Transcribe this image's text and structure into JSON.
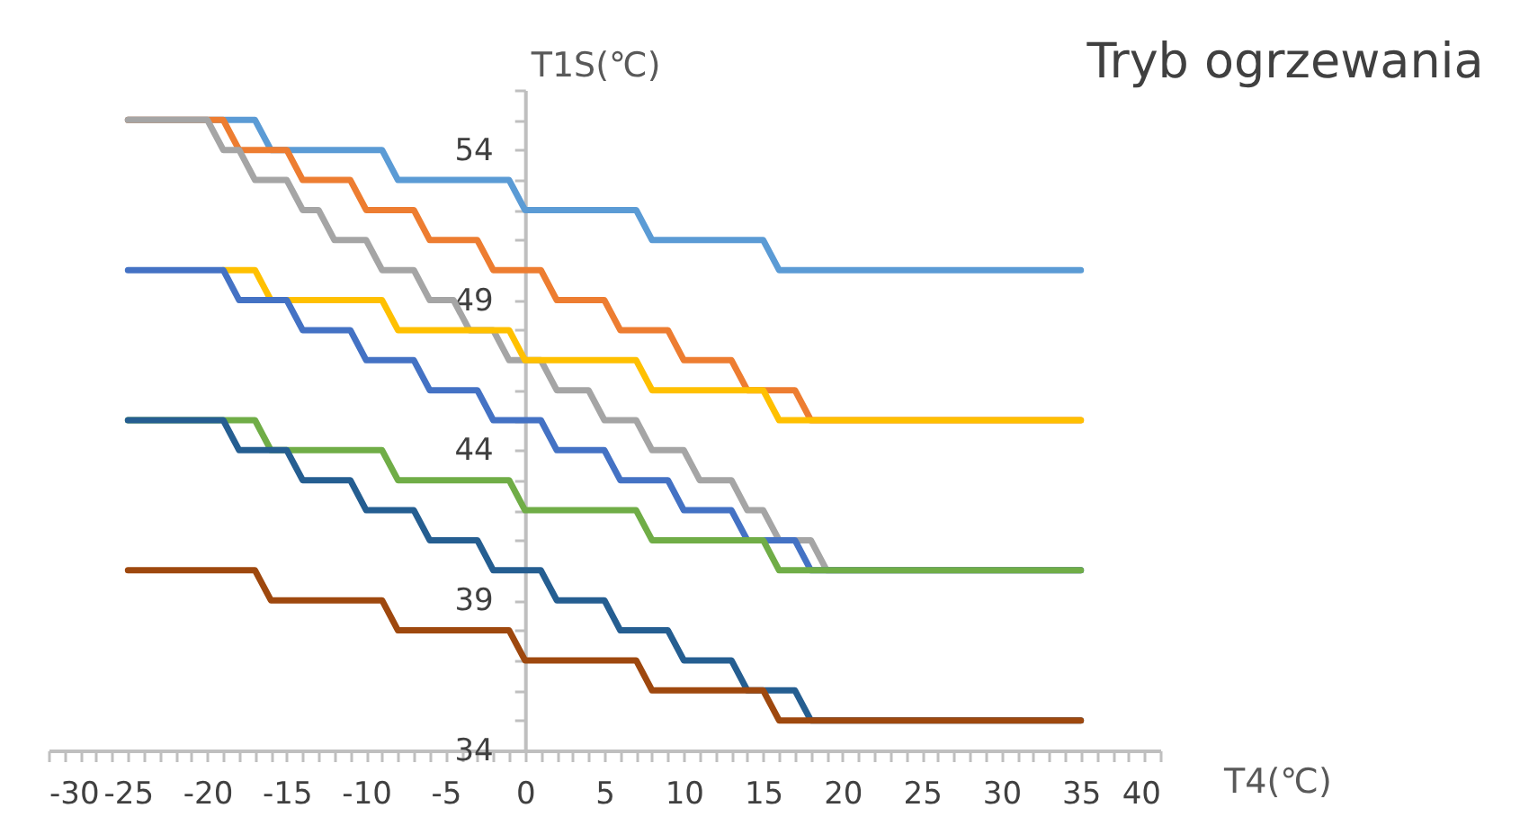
{
  "chart_data": {
    "type": "line",
    "title": "Tryb ogrzewania",
    "xlabel": "T4(℃)",
    "ylabel": "T1S(℃)",
    "xlim": [
      -30,
      40
    ],
    "ylim": [
      34,
      56
    ],
    "xticks": [
      -30,
      {
        "value": -29,
        "label": null
      },
      {
        "value": -28,
        "label": null
      },
      {
        "value": -27,
        "label": null
      },
      {
        "value": -26,
        "label": null
      },
      -25,
      {
        "value": -24,
        "label": null
      },
      {
        "value": -23,
        "label": null
      },
      {
        "value": -22,
        "label": null
      },
      {
        "value": -21,
        "label": null
      },
      -20,
      {
        "value": -19,
        "label": null
      },
      {
        "value": -18,
        "label": null
      },
      {
        "value": -17,
        "label": null
      },
      {
        "value": -16,
        "label": null
      },
      -15,
      {
        "value": -14,
        "label": null
      },
      {
        "value": -13,
        "label": null
      },
      {
        "value": -12,
        "label": null
      },
      {
        "value": -11,
        "label": null
      },
      -10,
      {
        "value": -9,
        "label": null
      },
      {
        "value": -8,
        "label": null
      },
      {
        "value": -7,
        "label": null
      },
      {
        "value": -6,
        "label": null
      },
      -5,
      {
        "value": -4,
        "label": null
      },
      {
        "value": -3,
        "label": null
      },
      {
        "value": -2,
        "label": null
      },
      {
        "value": -1,
        "label": null
      },
      0,
      {
        "value": 1,
        "label": null
      },
      {
        "value": 2,
        "label": null
      },
      {
        "value": 3,
        "label": null
      },
      {
        "value": 4,
        "label": null
      },
      5,
      {
        "value": 6,
        "label": null
      },
      {
        "value": 7,
        "label": null
      },
      {
        "value": 8,
        "label": null
      },
      {
        "value": 9,
        "label": null
      },
      10,
      {
        "value": 11,
        "label": null
      },
      {
        "value": 12,
        "label": null
      },
      {
        "value": 13,
        "label": null
      },
      {
        "value": 14,
        "label": null
      },
      15,
      {
        "value": 16,
        "label": null
      },
      {
        "value": 17,
        "label": null
      },
      {
        "value": 18,
        "label": null
      },
      {
        "value": 19,
        "label": null
      },
      20,
      {
        "value": 21,
        "label": null
      },
      {
        "value": 22,
        "label": null
      },
      {
        "value": 23,
        "label": null
      },
      {
        "value": 24,
        "label": null
      },
      25,
      {
        "value": 26,
        "label": null
      },
      {
        "value": 27,
        "label": null
      },
      {
        "value": 28,
        "label": null
      },
      {
        "value": 29,
        "label": null
      },
      30,
      {
        "value": 31,
        "label": null
      },
      {
        "value": 32,
        "label": null
      },
      {
        "value": 33,
        "label": null
      },
      {
        "value": 34,
        "label": null
      },
      35,
      {
        "value": 36,
        "label": null
      },
      {
        "value": 37,
        "label": null
      },
      {
        "value": 38,
        "label": null
      },
      {
        "value": 39,
        "label": null
      },
      40
    ],
    "yticks": [
      34,
      {
        "value": 35,
        "label": null
      },
      {
        "value": 36,
        "label": null
      },
      {
        "value": 37,
        "label": null
      },
      {
        "value": 38,
        "label": null
      },
      39,
      {
        "value": 40,
        "label": null
      },
      {
        "value": 41,
        "label": null
      },
      {
        "value": 42,
        "label": null
      },
      {
        "value": 43,
        "label": null
      },
      44,
      {
        "value": 45,
        "label": null
      },
      {
        "value": 46,
        "label": null
      },
      {
        "value": 47,
        "label": null
      },
      {
        "value": 48,
        "label": null
      },
      49,
      {
        "value": 50,
        "label": null
      },
      {
        "value": 51,
        "label": null
      },
      {
        "value": 52,
        "label": null
      },
      {
        "value": 53,
        "label": null
      },
      54,
      {
        "value": 55,
        "label": null
      },
      {
        "value": 56,
        "label": null
      }
    ],
    "grid": false,
    "legend": false,
    "marker": "none",
    "line_style": "solid",
    "series": [
      {
        "color": "#5b9bd5",
        "x": [
          -25,
          -17,
          -16,
          -9,
          -8,
          -1,
          0,
          7,
          8,
          15,
          16,
          35
        ],
        "values": [
          55,
          55,
          54,
          54,
          53,
          53,
          52,
          52,
          51,
          51,
          50,
          50
        ]
      },
      {
        "color": "#ed7d31",
        "x": [
          -25,
          -19,
          -18,
          -15,
          -14,
          -11,
          -10,
          -7,
          -6,
          -3,
          -2,
          1,
          2,
          5,
          6,
          9,
          10,
          13,
          14,
          17,
          18,
          35
        ],
        "values": [
          55,
          55,
          54,
          54,
          53,
          53,
          52,
          52,
          51,
          51,
          50,
          50,
          49,
          49,
          48,
          48,
          47,
          47,
          46,
          46,
          45,
          45
        ]
      },
      {
        "color": "#a5a5a5",
        "x": [
          -25,
          -20,
          -19,
          -18,
          -17,
          -15,
          -14,
          -13,
          -12,
          -10,
          -9,
          -7,
          -6,
          -4.5,
          -3.5,
          -2,
          -1,
          1,
          2,
          4,
          5,
          7,
          8,
          10,
          11,
          13,
          14,
          15,
          16,
          18,
          19,
          35
        ],
        "values": [
          55,
          55,
          54,
          54,
          53,
          53,
          52,
          52,
          51,
          51,
          50,
          50,
          49,
          49,
          48,
          48,
          47,
          47,
          46,
          46,
          45,
          45,
          44,
          44,
          43,
          43,
          42,
          42,
          41,
          41,
          40,
          40
        ]
      },
      {
        "color": "#ffc000",
        "x": [
          -19,
          -17,
          -16,
          -9,
          -8,
          -1,
          0,
          7,
          8,
          15,
          16,
          35
        ],
        "values": [
          50,
          50,
          49,
          49,
          48,
          48,
          47,
          47,
          46,
          46,
          45,
          45
        ]
      },
      {
        "color": "#4472c4",
        "x": [
          -25,
          -19,
          -18,
          -15,
          -14,
          -11,
          -10,
          -7,
          -6,
          -3,
          -2,
          1,
          2,
          5,
          6,
          9,
          10,
          13,
          14,
          17,
          18,
          35
        ],
        "values": [
          50,
          50,
          49,
          49,
          48,
          48,
          47,
          47,
          46,
          46,
          45,
          45,
          44,
          44,
          43,
          43,
          42,
          42,
          41,
          41,
          40,
          40
        ]
      },
      {
        "color": "#70ad47",
        "x": [
          -25,
          -17,
          -16,
          -9,
          -8,
          -1,
          0,
          7,
          8,
          15,
          16,
          35
        ],
        "values": [
          45,
          45,
          44,
          44,
          43,
          43,
          42,
          42,
          41,
          41,
          40,
          40
        ]
      },
      {
        "color": "#255e91",
        "x": [
          -25,
          -19,
          -18,
          -15,
          -14,
          -11,
          -10,
          -7,
          -6,
          -3,
          -2,
          1,
          2,
          5,
          6,
          9,
          10,
          13,
          14,
          17,
          18,
          35
        ],
        "values": [
          45,
          45,
          44,
          44,
          43,
          43,
          42,
          42,
          41,
          41,
          40,
          40,
          39,
          39,
          38,
          38,
          37,
          37,
          36,
          36,
          35,
          35
        ]
      },
      {
        "color": "#9e480e",
        "x": [
          -25,
          -17,
          -16,
          -9,
          -8,
          -1,
          0,
          7,
          8,
          15,
          16,
          35
        ],
        "values": [
          40,
          40,
          39,
          39,
          38,
          38,
          37,
          37,
          36,
          36,
          35,
          35
        ]
      }
    ]
  }
}
